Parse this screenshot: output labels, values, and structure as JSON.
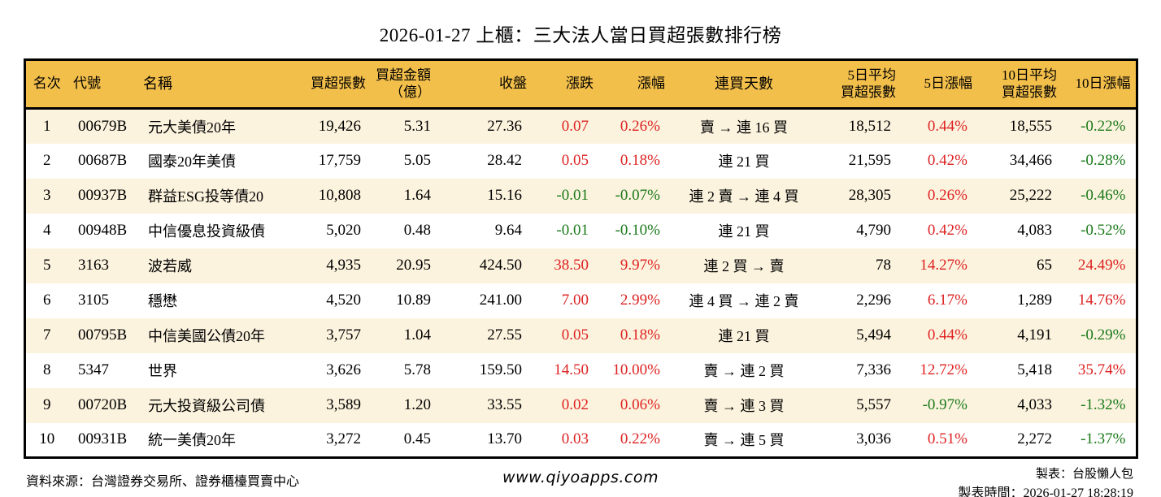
{
  "title": "2026-01-27 上櫃：三大法人當日買超張數排行榜",
  "colors": {
    "positive_red": "#dd2222",
    "negative_green": "#1a7a1a",
    "header_bg": "#f3bf4b",
    "row_alt_bg": "#fcf3de"
  },
  "chart_data": {
    "type": "table",
    "title": "2026-01-27 上櫃：三大法人當日買超張數排行榜",
    "columns": [
      "名次",
      "代號",
      "名稱",
      "買超張數",
      "買超金額\n（億）",
      "收盤",
      "漲跌",
      "漲幅",
      "連買天數",
      "5日平均\n買超張數",
      "5日漲幅",
      "10日平均\n買超張數",
      "10日漲幅"
    ],
    "rows": [
      [
        "1",
        "00679B",
        "元大美債20年",
        "19,426",
        "5.31",
        "27.36",
        "0.07",
        "0.26%",
        "賣 → 連 16 買",
        "18,512",
        "0.44%",
        "18,555",
        "-0.22%"
      ],
      [
        "2",
        "00687B",
        "國泰20年美債",
        "17,759",
        "5.05",
        "28.42",
        "0.05",
        "0.18%",
        "連 21 買",
        "21,595",
        "0.42%",
        "34,466",
        "-0.28%"
      ],
      [
        "3",
        "00937B",
        "群益ESG投等債20",
        "10,808",
        "1.64",
        "15.16",
        "-0.01",
        "-0.07%",
        "連 2 賣 → 連 4 買",
        "28,305",
        "0.26%",
        "25,222",
        "-0.46%"
      ],
      [
        "4",
        "00948B",
        "中信優息投資級債",
        "5,020",
        "0.48",
        "9.64",
        "-0.01",
        "-0.10%",
        "連 21 買",
        "4,790",
        "0.42%",
        "4,083",
        "-0.52%"
      ],
      [
        "5",
        "3163",
        "波若威",
        "4,935",
        "20.95",
        "424.50",
        "38.50",
        "9.97%",
        "連 2 買 → 賣",
        "78",
        "14.27%",
        "65",
        "24.49%"
      ],
      [
        "6",
        "3105",
        "穩懋",
        "4,520",
        "10.89",
        "241.00",
        "7.00",
        "2.99%",
        "連 4 買 → 連 2 賣",
        "2,296",
        "6.17%",
        "1,289",
        "14.76%"
      ],
      [
        "7",
        "00795B",
        "中信美國公債20年",
        "3,757",
        "1.04",
        "27.55",
        "0.05",
        "0.18%",
        "連 21 買",
        "5,494",
        "0.44%",
        "4,191",
        "-0.29%"
      ],
      [
        "8",
        "5347",
        "世界",
        "3,626",
        "5.78",
        "159.50",
        "14.50",
        "10.00%",
        "賣 → 連 2 買",
        "7,336",
        "12.72%",
        "5,418",
        "35.74%"
      ],
      [
        "9",
        "00720B",
        "元大投資級公司債",
        "3,589",
        "1.20",
        "33.55",
        "0.02",
        "0.06%",
        "賣 → 連 3 買",
        "5,557",
        "-0.97%",
        "4,033",
        "-1.32%"
      ],
      [
        "10",
        "00931B",
        "統一美債20年",
        "3,272",
        "0.45",
        "13.70",
        "0.03",
        "0.22%",
        "賣 → 連 5 買",
        "3,036",
        "0.51%",
        "2,272",
        "-1.37%"
      ]
    ]
  },
  "footer": {
    "source": "資料來源：台灣證券交易所、證券櫃檯買賣中心",
    "website": "www.qiyoapps.com",
    "maker": "製表：台股懶人包",
    "timestamp": "製表時間：2026-01-27 18:28:19"
  }
}
